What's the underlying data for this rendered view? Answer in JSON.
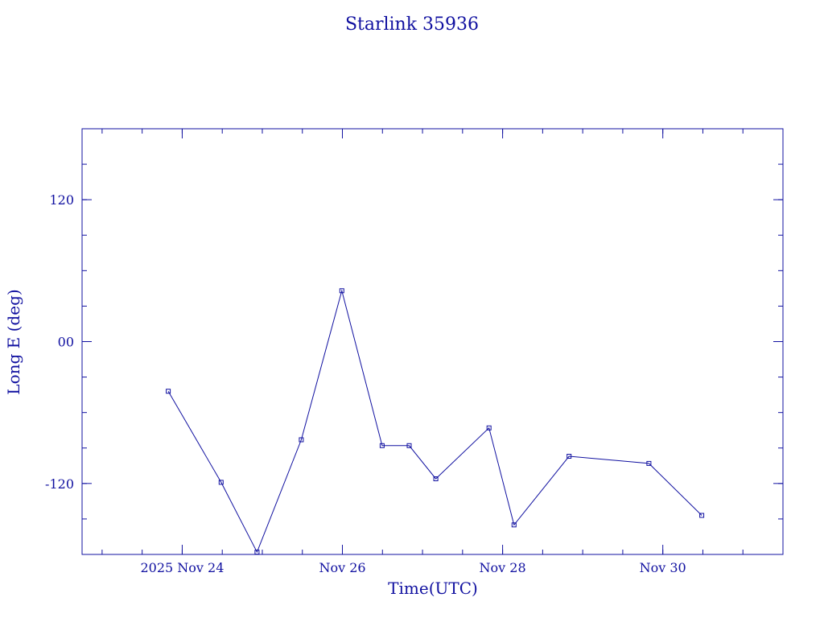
{
  "chart_data": {
    "type": "line",
    "title": "Starlink 35936",
    "xlabel": "Time(UTC)",
    "ylabel": "Long E (deg)",
    "colors": {
      "axis": "#1010a0",
      "line": "#1010a0",
      "text": "#1010a0"
    },
    "grid": false,
    "legend": "none",
    "xlim": [
      "2025-11-22 18:00",
      "2025-12-01 12:00"
    ],
    "ylim": [
      -180,
      180
    ],
    "x_ticks": [
      {
        "x": "2025-11-24",
        "label": "2025 Nov 24"
      },
      {
        "x": "2025-11-26",
        "label": "Nov 26"
      },
      {
        "x": "2025-11-28",
        "label": "Nov 28"
      },
      {
        "x": "2025-11-30",
        "label": "Nov 30"
      }
    ],
    "y_ticks": [
      {
        "y": 120,
        "label": "120"
      },
      {
        "y": 0,
        "label": "00"
      },
      {
        "y": -120,
        "label": "-120"
      }
    ],
    "series": [
      {
        "points": [
          {
            "x": "2025-11-23 19:50",
            "y": -42
          },
          {
            "x": "2025-11-24 11:40",
            "y": -119
          },
          {
            "x": "2025-11-24 22:25",
            "y": -178
          },
          {
            "x": "2025-11-25 11:40",
            "y": -83
          },
          {
            "x": "2025-11-25 23:50",
            "y": 43
          },
          {
            "x": "2025-11-26 11:55",
            "y": -88
          },
          {
            "x": "2025-11-26 20:00",
            "y": -88
          },
          {
            "x": "2025-11-27 04:00",
            "y": -116
          },
          {
            "x": "2025-11-27 19:55",
            "y": -73
          },
          {
            "x": "2025-11-28 03:25",
            "y": -155
          },
          {
            "x": "2025-11-28 19:55",
            "y": -97
          },
          {
            "x": "2025-11-29 19:50",
            "y": -103
          },
          {
            "x": "2025-11-30 11:40",
            "y": -147
          }
        ]
      }
    ]
  }
}
